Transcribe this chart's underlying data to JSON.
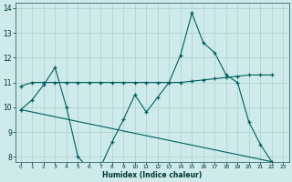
{
  "xlabel": "Humidex (Indice chaleur)",
  "background_color": "#ceeaea",
  "grid_color": "#aad0d0",
  "line_color": "#006060",
  "xlim": [
    -0.5,
    23.5
  ],
  "ylim": [
    7.8,
    14.2
  ],
  "yticks": [
    8,
    9,
    10,
    11,
    12,
    13,
    14
  ],
  "xticks": [
    0,
    1,
    2,
    3,
    4,
    5,
    6,
    7,
    8,
    9,
    10,
    11,
    12,
    13,
    14,
    15,
    16,
    17,
    18,
    19,
    20,
    21,
    22,
    23
  ],
  "series1_x": [
    0,
    1,
    2,
    3,
    4,
    5,
    6,
    7,
    8,
    9,
    10,
    11,
    12,
    13,
    14,
    15,
    16,
    17,
    18,
    19,
    20,
    21,
    22
  ],
  "series1_y": [
    9.9,
    10.3,
    10.9,
    11.6,
    10.0,
    8.0,
    7.5,
    7.6,
    8.6,
    9.5,
    10.5,
    9.8,
    10.4,
    11.0,
    12.1,
    13.8,
    12.6,
    12.2,
    11.3,
    11.0,
    9.4,
    8.5,
    7.8
  ],
  "series2_x": [
    0,
    1,
    2,
    3,
    4,
    5,
    6,
    7,
    8,
    9,
    10,
    11,
    12,
    13,
    14,
    15,
    16,
    17,
    18,
    19,
    20,
    21,
    22
  ],
  "series2_y": [
    10.85,
    11.0,
    11.0,
    11.0,
    11.0,
    11.0,
    11.0,
    11.0,
    11.0,
    11.0,
    11.0,
    11.0,
    11.0,
    11.0,
    11.0,
    11.05,
    11.1,
    11.15,
    11.2,
    11.25,
    11.3,
    11.3,
    11.3
  ],
  "series3_x": [
    0,
    22
  ],
  "series3_y": [
    9.9,
    7.8
  ]
}
